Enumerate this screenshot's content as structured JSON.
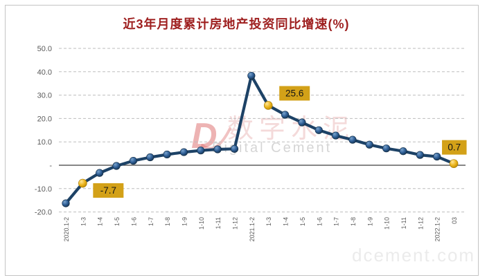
{
  "title": {
    "text": "近3年月度累计房地产投资同比增速(%)",
    "color": "#9e1f1f"
  },
  "watermark": {
    "logo": "D",
    "cn": "数字水泥",
    "en": "Digital Cement",
    "site": "dcement.com",
    "logo_color": "#dd6a6a",
    "cn_color": "#eab6b6",
    "en_color": "#bababa",
    "site_color": "#dcdcdc"
  },
  "chart_data": {
    "type": "line",
    "title": "近3年月度累计房地产投资同比增速(%)",
    "categories": [
      "2020.1-2",
      "1-3",
      "1-4",
      "1-5",
      "1-6",
      "1-7",
      "1-8",
      "1-9",
      "1-10",
      "1-11",
      "1-12",
      "2021.1-2",
      "1-3",
      "1-4",
      "1-5",
      "1-6",
      "1-7",
      "1-8",
      "1-9",
      "1-10",
      "1-11",
      "1-12",
      "2022.1-2",
      "03"
    ],
    "values": [
      -16.3,
      -7.7,
      -3.3,
      -0.3,
      1.9,
      3.4,
      4.6,
      5.6,
      6.3,
      6.8,
      7.0,
      38.3,
      25.6,
      21.6,
      18.3,
      15.0,
      12.7,
      10.9,
      8.8,
      7.2,
      6.0,
      4.4,
      3.7,
      0.7
    ],
    "unit": "%",
    "ylim": [
      -20,
      50
    ],
    "y_ticks": [
      50,
      40,
      30,
      20,
      10,
      0,
      -10,
      -20
    ],
    "y_tick_labels": [
      "50.0",
      "40.0",
      "30.0",
      "20.0",
      "10.0",
      "-",
      "-10.0",
      "-20.0"
    ],
    "grid": "horizontal-dashed",
    "legend": "none",
    "highlights": [
      {
        "index": 1,
        "label": "-7.7"
      },
      {
        "index": 12,
        "label": "25.6"
      },
      {
        "index": 23,
        "label": "0.7"
      }
    ],
    "colors": {
      "line": "#1d4266",
      "marker": "#2e5e96",
      "marker_edge": "#122c44",
      "highlight_marker": "#ecb61f",
      "label_bg": "#d3a118",
      "label_text": "#151515",
      "gridline": "#bdbdbd",
      "zero_line": "#3f3f3f",
      "tick_text": "#595959"
    }
  }
}
